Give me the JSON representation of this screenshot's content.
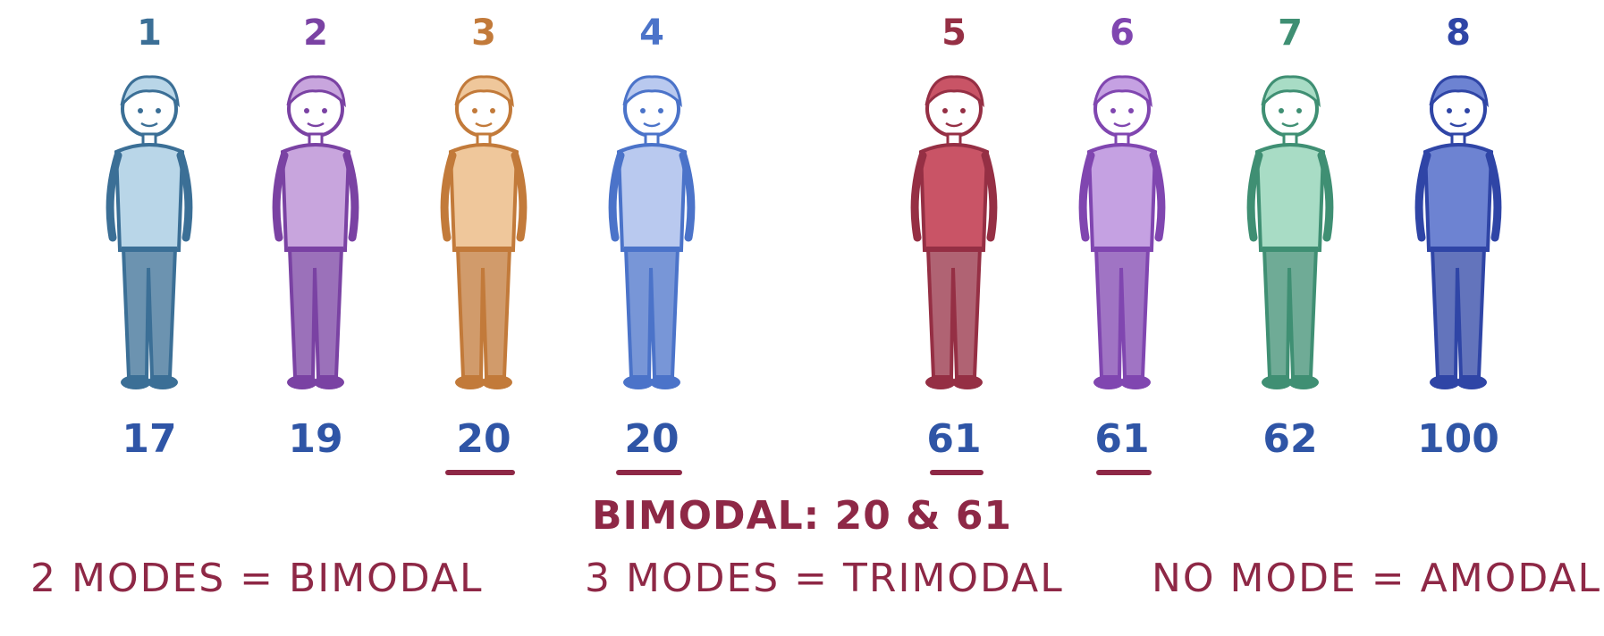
{
  "people": [
    {
      "index": "1",
      "value": "17",
      "mode": false,
      "color": "#3b6f96",
      "light": "#b9d6e8"
    },
    {
      "index": "2",
      "value": "19",
      "mode": false,
      "color": "#7a42a3",
      "light": "#c8a5dd"
    },
    {
      "index": "3",
      "value": "20",
      "mode": true,
      "color": "#c27a3a",
      "light": "#efc79b"
    },
    {
      "index": "4",
      "value": "20",
      "mode": true,
      "color": "#4b73c9",
      "light": "#b9c9ef"
    },
    {
      "index": "5",
      "value": "61",
      "mode": true,
      "color": "#952f44",
      "light": "#c95466"
    },
    {
      "index": "6",
      "value": "61",
      "mode": true,
      "color": "#8046b0",
      "light": "#c5a1e2"
    },
    {
      "index": "7",
      "value": "62",
      "mode": false,
      "color": "#3f8f73",
      "light": "#a8dcc5"
    },
    {
      "index": "8",
      "value": "100",
      "mode": false,
      "color": "#2f45a6",
      "light": "#6d83d2"
    }
  ],
  "captions": {
    "main": "BIMODAL: 20 & 61",
    "rule1": "2 MODES = BIMODAL",
    "rule2": "3 MODES = TRIMODAL",
    "rule3": "NO MODE = AMODAL"
  },
  "colors": {
    "accent": "#8e2846",
    "value_text": "#2f55a6"
  }
}
